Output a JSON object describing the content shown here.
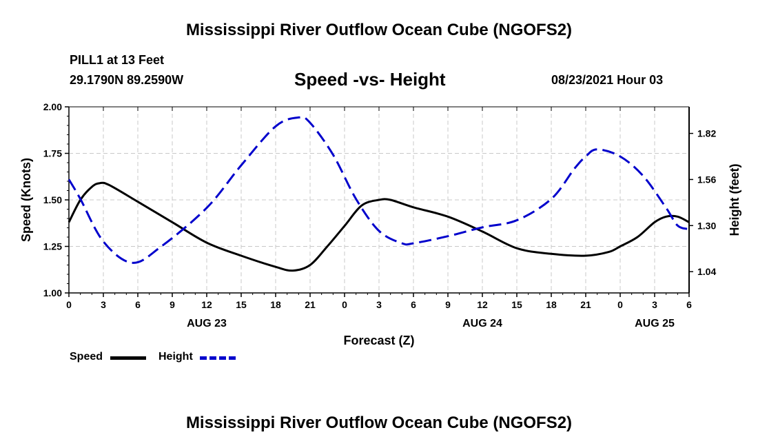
{
  "header": {
    "title": "Mississippi River Outflow Ocean Cube (NGOFS2)",
    "station": "PILL1 at 13 Feet",
    "coords": "29.1790N  89.2590W",
    "plot_title": "Speed -vs- Height",
    "datetime": "08/23/2021 Hour 03"
  },
  "footer": {
    "title": "Mississippi River Outflow Ocean Cube (NGOFS2)"
  },
  "legend": {
    "speed_label": "Speed",
    "height_label": "Height",
    "speed_color": "#000000",
    "height_color": "#0000cc"
  },
  "chart_data": {
    "type": "line",
    "title": "Speed -vs- Height",
    "xlabel": "Forecast (Z)",
    "ylabel": "Speed (Knots)",
    "y2label": "Height (feet)",
    "x_range": [
      0,
      54
    ],
    "ylim": [
      1.0,
      2.0
    ],
    "y2lim": [
      0.92,
      1.97
    ],
    "x_ticks": [
      0,
      3,
      6,
      9,
      12,
      15,
      18,
      21,
      24,
      27,
      30,
      33,
      36,
      39,
      42,
      45,
      48,
      51,
      54
    ],
    "x_tick_labels": [
      "0",
      "3",
      "6",
      "9",
      "12",
      "15",
      "18",
      "21",
      "0",
      "3",
      "6",
      "9",
      "12",
      "15",
      "18",
      "21",
      "0",
      "3",
      "6"
    ],
    "y_ticks": [
      "1.00",
      "1.25",
      "1.50",
      "1.75",
      "2.00"
    ],
    "y2_ticks": [
      "1.04",
      "1.30",
      "1.56",
      "1.82"
    ],
    "day_labels": [
      {
        "label": "AUG 23",
        "x": 12
      },
      {
        "label": "AUG 24",
        "x": 36
      },
      {
        "label": "AUG 25",
        "x": 51
      }
    ],
    "grid": true,
    "series": [
      {
        "name": "Speed",
        "axis": "left",
        "style": "solid",
        "x": [
          0,
          1,
          2,
          2.7,
          3.5,
          6,
          9,
          12,
          15,
          18,
          19.5,
          21,
          22.5,
          24,
          25.5,
          27,
          28,
          30,
          33,
          36,
          39,
          42,
          45,
          47,
          48,
          49.5,
          51,
          52,
          53,
          54
        ],
        "values": [
          1.38,
          1.5,
          1.57,
          1.59,
          1.58,
          1.49,
          1.38,
          1.27,
          1.2,
          1.14,
          1.12,
          1.15,
          1.25,
          1.36,
          1.47,
          1.5,
          1.5,
          1.46,
          1.41,
          1.33,
          1.24,
          1.21,
          1.2,
          1.22,
          1.25,
          1.3,
          1.38,
          1.41,
          1.41,
          1.38
        ]
      },
      {
        "name": "Height",
        "axis": "right",
        "style": "dashed",
        "x": [
          0,
          1,
          3,
          5.5,
          8,
          12,
          15,
          18,
          20,
          21,
          23,
          25,
          27,
          29,
          30,
          33,
          36,
          39,
          42,
          44,
          45,
          46,
          48,
          50,
          52,
          53,
          54
        ],
        "values": [
          1.56,
          1.45,
          1.21,
          1.09,
          1.18,
          1.4,
          1.64,
          1.86,
          1.91,
          1.88,
          1.7,
          1.45,
          1.27,
          1.2,
          1.2,
          1.24,
          1.29,
          1.33,
          1.45,
          1.62,
          1.69,
          1.73,
          1.69,
          1.58,
          1.4,
          1.3,
          1.28
        ]
      }
    ]
  }
}
